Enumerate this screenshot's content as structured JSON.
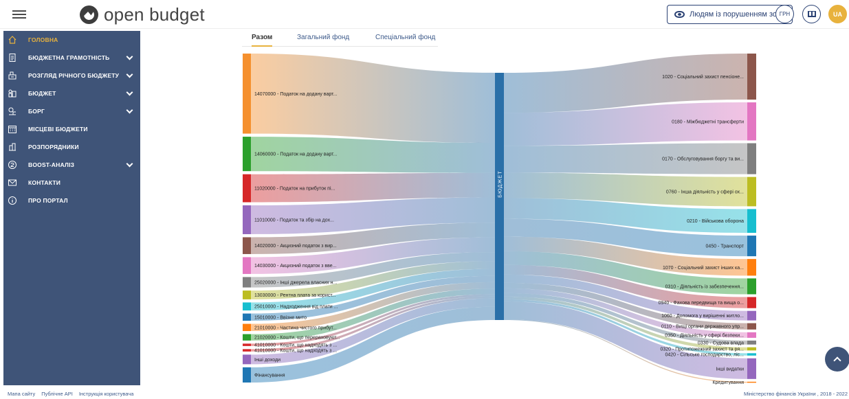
{
  "header": {
    "logo_text": "open budget",
    "accessibility_label": "Людям із порушенням зору",
    "currency_label": "ГРН",
    "lang_label": "UA"
  },
  "sidebar": {
    "items": [
      {
        "label": "ГОЛОВНА",
        "icon": "home-icon",
        "active": true,
        "expandable": false
      },
      {
        "label": "БЮДЖЕТНА ГРАМОТНІСТЬ",
        "icon": "document-icon",
        "active": false,
        "expandable": true
      },
      {
        "label": "РОЗГЛЯД РІЧНОГО БЮДЖЕТУ",
        "icon": "review-icon",
        "active": false,
        "expandable": true
      },
      {
        "label": "БЮДЖЕТ",
        "icon": "budget-icon",
        "active": false,
        "expandable": true
      },
      {
        "label": "БОРГ",
        "icon": "debt-icon",
        "active": false,
        "expandable": true
      },
      {
        "label": "МІСЦЕВІ БЮДЖЕТИ",
        "icon": "calendar-icon",
        "active": false,
        "expandable": false
      },
      {
        "label": "РОЗПОРЯДНИКИ",
        "icon": "building-icon",
        "active": false,
        "expandable": false
      },
      {
        "label": "BOOST-АНАЛІЗ",
        "icon": "analysis-icon",
        "active": false,
        "expandable": true
      },
      {
        "label": "КОНТАКТИ",
        "icon": "mail-icon",
        "active": false,
        "expandable": false
      },
      {
        "label": "ПРО ПОРТАЛ",
        "icon": "info-icon",
        "active": false,
        "expandable": false
      }
    ]
  },
  "tabs": [
    {
      "label": "Разом",
      "active": true
    },
    {
      "label": "Загальний фонд",
      "active": false
    },
    {
      "label": "Спеціальний фонд",
      "active": false
    }
  ],
  "sankey": {
    "center_label": "БЮДЖЕТ",
    "center_color": "#2a6fa8",
    "sources": [
      {
        "label": "14070000 - Податок на додану варт...",
        "color": "#f5902e",
        "value": 100
      },
      {
        "label": "14060000 - Податок на додану варт...",
        "color": "#2ca02c",
        "value": 43
      },
      {
        "label": "11020000 - Податок на прибуток пі...",
        "color": "#d62728",
        "value": 35
      },
      {
        "label": "11010000 - Податок та збір на дох...",
        "color": "#9467bd",
        "value": 36
      },
      {
        "label": "14020000 - Акцизний податок з вир...",
        "color": "#8c564b",
        "value": 21
      },
      {
        "label": "14030000 - Акцизний податок з вве...",
        "color": "#e377c2",
        "value": 21
      },
      {
        "label": "25020000 - Інші джерела власних н...",
        "color": "#7f7f7f",
        "value": 13
      },
      {
        "label": "13030000 - Рентна плата за корист...",
        "color": "#bcbd22",
        "value": 11
      },
      {
        "label": "25010000 - Надходження від плати ...",
        "color": "#17becf",
        "value": 10
      },
      {
        "label": "15010000 - Ввізне мито",
        "color": "#1f77b4",
        "value": 9
      },
      {
        "label": "21010000 - Частина чистого прибут...",
        "color": "#ff7f0e",
        "value": 9
      },
      {
        "label": "21020000 - Кошти, що перераховуют...",
        "color": "#2ca02c",
        "value": 8
      },
      {
        "label": "41010000 - Кошти, що надходять з ...",
        "color": "#d62728",
        "value": 3
      },
      {
        "label": "41010000 - Кошти, що надходять з ...",
        "color": "#d62728",
        "value": 3
      },
      {
        "label": "Інші доходи",
        "color": "#9467bd",
        "value": 12
      },
      {
        "label": "Фінансування",
        "color": "#1f77b4",
        "value": 19
      }
    ],
    "targets": [
      {
        "label": "1020 - Соціальний захист пенсіоне...",
        "color": "#8c564b",
        "value": 58
      },
      {
        "label": "0180 - Міжбюджетні трансферти",
        "color": "#e377c2",
        "value": 48
      },
      {
        "label": "0170 - Обслуговування боргу та ви...",
        "color": "#7f7f7f",
        "value": 39
      },
      {
        "label": "0760 - Інша діяльність у сфері ох...",
        "color": "#bcbd22",
        "value": 37
      },
      {
        "label": "0210 - Військова оборона",
        "color": "#17becf",
        "value": 30
      },
      {
        "label": "0450 - Транспорт",
        "color": "#1f77b4",
        "value": 26
      },
      {
        "label": "1070 - Соціальний захист інших ка...",
        "color": "#ff7f0e",
        "value": 21
      },
      {
        "label": "0310 - Діяльність із забезпечення...",
        "color": "#2ca02c",
        "value": 20
      },
      {
        "label": "0940 - Фахова передвища та вища о...",
        "color": "#d62728",
        "value": 14
      },
      {
        "label": "1060 - Допомога у вирішенні житло...",
        "color": "#9467bd",
        "value": 12
      },
      {
        "label": "0110 - Вищі органи державного упр...",
        "color": "#8c564b",
        "value": 8
      },
      {
        "label": "0350 - Діяльність у сфері безпеки...",
        "color": "#e377c2",
        "value": 7
      },
      {
        "label": "0330 - Судова влада",
        "color": "#7f7f7f",
        "value": 5
      },
      {
        "label": "0320 - Протипожежний захист та ря...",
        "color": "#bcbd22",
        "value": 4
      },
      {
        "label": "0420 - Сільське господарство, ліс...",
        "color": "#17becf",
        "value": 3
      },
      {
        "label": "Інші видатки",
        "color": "#9467bd",
        "value": 26
      },
      {
        "label": "Кредитування",
        "color": "#ff7f0e",
        "value": 1
      }
    ]
  },
  "footer": {
    "links": [
      "Мапа сайту",
      "Публічне API",
      "Інструкція користувача"
    ],
    "copyright": "Міністерство фінансів України , 2018 - 2022"
  }
}
